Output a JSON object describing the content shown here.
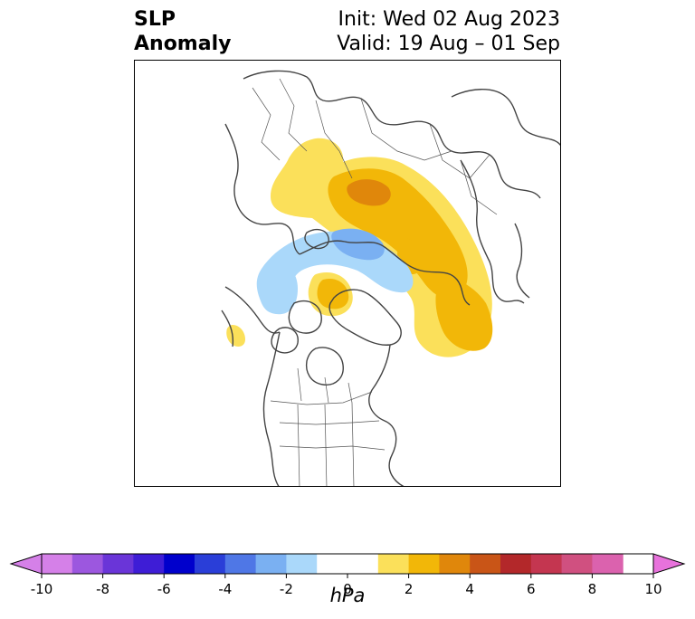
{
  "header": {
    "title_line1": "SLP",
    "title_line2": "Anomaly",
    "init_label": "Init: Wed 02 Aug 2023",
    "valid_label": "Valid: 19 Aug – 01 Sep"
  },
  "colorbar": {
    "unit": "hPa",
    "min": -10,
    "max": 10,
    "bounds": [
      -9,
      -8,
      -7,
      -6,
      -5,
      -4,
      -3,
      -2,
      -1,
      1,
      2,
      3,
      4,
      5,
      6,
      7,
      8,
      9
    ],
    "colors": [
      "#d580e8",
      "#9c57df",
      "#6a35d8",
      "#3e1dd6",
      "#0000cc",
      "#2a3ed8",
      "#4f77e6",
      "#7ab0f2",
      "#aad8fa",
      "#ffffff",
      "#fbe05a",
      "#f2b708",
      "#e0870b",
      "#c95517",
      "#b3282a",
      "#c43650",
      "#d05080",
      "#db62ae"
    ],
    "extend_low_color": "#d580e8",
    "extend_high_color": "#e872dc",
    "ticks": [
      {
        "value": -10,
        "label": "-10"
      },
      {
        "value": -8,
        "label": "-8"
      },
      {
        "value": -6,
        "label": "-6"
      },
      {
        "value": -4,
        "label": "-4"
      },
      {
        "value": -2,
        "label": "-2"
      },
      {
        "value": 0,
        "label": "0"
      },
      {
        "value": 2,
        "label": "2"
      },
      {
        "value": 4,
        "label": "4"
      },
      {
        "value": 6,
        "label": "6"
      },
      {
        "value": 8,
        "label": "8"
      },
      {
        "value": 10,
        "label": "10"
      }
    ]
  },
  "anomaly_regions": [
    {
      "name": "eurasia-positive",
      "level": "1-2 hPa",
      "color": "#fbe05a"
    },
    {
      "name": "siberia-positive-core",
      "level": "2-3 hPa",
      "color": "#f2b708"
    },
    {
      "name": "siberia-peak",
      "level": "3-4 hPa",
      "color": "#e0870b"
    },
    {
      "name": "arctic-negative",
      "level": "-1 to -2 hPa",
      "color": "#aad8fa"
    },
    {
      "name": "arctic-negative-core",
      "level": "-2 to -3 hPa",
      "color": "#7ab0f2"
    },
    {
      "name": "greenland-positive",
      "level": "2-3 hPa",
      "color": "#f2b708"
    },
    {
      "name": "north-pacific-positive",
      "level": "2-3 hPa",
      "color": "#f2b708"
    },
    {
      "name": "east-asia-small-positive",
      "level": "1-2 hPa",
      "color": "#fbe05a"
    }
  ]
}
